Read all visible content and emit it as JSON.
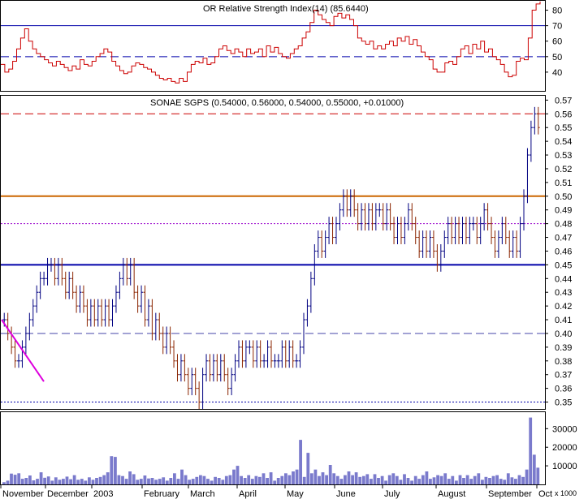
{
  "chart_data": [
    {
      "type": "line",
      "title": "OR Relative Strength Index(14) (85.6440)",
      "ylim": [
        30,
        85
      ],
      "yticks": [
        40,
        50,
        60,
        70,
        80
      ],
      "reference_lines": [
        {
          "value": 70,
          "style": "solid",
          "color": "#0000aa"
        },
        {
          "value": 50,
          "style": "dashed",
          "color": "#0000aa"
        }
      ],
      "series": [
        {
          "color": "#cc0000",
          "values": [
            45,
            40,
            42,
            47,
            55,
            62,
            68,
            60,
            55,
            52,
            50,
            48,
            46,
            44,
            47,
            45,
            43,
            41,
            44,
            42,
            48,
            45,
            44,
            47,
            50,
            52,
            55,
            53,
            47,
            44,
            41,
            39,
            40,
            44,
            46,
            45,
            43,
            42,
            40,
            38,
            36,
            35,
            36,
            34,
            33,
            36,
            34,
            40,
            45,
            47,
            46,
            49,
            45,
            46,
            50,
            55,
            57,
            54,
            52,
            55,
            53,
            50,
            55,
            52,
            53,
            55,
            50,
            57,
            53,
            56,
            52,
            50,
            49,
            52,
            55,
            57,
            62,
            66,
            72,
            80,
            77,
            74,
            72,
            70,
            76,
            78,
            75,
            77,
            74,
            70,
            62,
            60,
            58,
            60,
            55,
            57,
            55,
            58,
            60,
            57,
            62,
            60,
            63,
            58,
            61,
            57,
            53,
            50,
            48,
            42,
            40,
            40,
            46,
            47,
            45,
            50,
            55,
            57,
            52,
            58,
            55,
            60,
            53,
            55,
            50,
            48,
            45,
            40,
            37,
            38,
            47,
            49,
            48,
            62,
            80,
            84,
            85.6
          ]
        }
      ]
    },
    {
      "type": "candlestick",
      "title": "SONAE SGPS (0.54000, 0.56000, 0.54000, 0.55000, +0.01000)",
      "ylim": [
        0.345,
        0.572
      ],
      "yticks": [
        0.35,
        0.36,
        0.37,
        0.38,
        0.39,
        0.4,
        0.41,
        0.42,
        0.43,
        0.44,
        0.45,
        0.46,
        0.47,
        0.48,
        0.49,
        0.5,
        0.51,
        0.52,
        0.53,
        0.54,
        0.55,
        0.56,
        0.57
      ],
      "reference_lines": [
        {
          "value": 0.56,
          "style": "dashed",
          "color": "#cc0000"
        },
        {
          "value": 0.5,
          "style": "solid",
          "color": "#cc6600"
        },
        {
          "value": 0.48,
          "style": "dotted",
          "color": "#9900cc"
        },
        {
          "value": 0.45,
          "style": "solid",
          "color": "#0000aa"
        },
        {
          "value": 0.4,
          "style": "dashed",
          "color": "#4444aa"
        },
        {
          "value": 0.35,
          "style": "dotted",
          "color": "#0000aa"
        }
      ],
      "closes": [
        0.41,
        0.4,
        0.39,
        0.38,
        0.38,
        0.39,
        0.4,
        0.41,
        0.42,
        0.43,
        0.44,
        0.44,
        0.45,
        0.45,
        0.44,
        0.45,
        0.44,
        0.43,
        0.44,
        0.43,
        0.42,
        0.43,
        0.42,
        0.41,
        0.42,
        0.41,
        0.42,
        0.41,
        0.42,
        0.41,
        0.42,
        0.43,
        0.44,
        0.45,
        0.44,
        0.45,
        0.43,
        0.42,
        0.43,
        0.41,
        0.42,
        0.4,
        0.41,
        0.4,
        0.39,
        0.4,
        0.39,
        0.38,
        0.37,
        0.38,
        0.37,
        0.36,
        0.37,
        0.36,
        0.35,
        0.37,
        0.38,
        0.37,
        0.38,
        0.37,
        0.38,
        0.37,
        0.36,
        0.37,
        0.38,
        0.39,
        0.38,
        0.39,
        0.39,
        0.38,
        0.39,
        0.38,
        0.38,
        0.39,
        0.38,
        0.38,
        0.38,
        0.39,
        0.38,
        0.39,
        0.38,
        0.38,
        0.39,
        0.41,
        0.42,
        0.44,
        0.46,
        0.47,
        0.46,
        0.47,
        0.48,
        0.47,
        0.48,
        0.49,
        0.5,
        0.49,
        0.5,
        0.49,
        0.48,
        0.49,
        0.48,
        0.49,
        0.48,
        0.49,
        0.49,
        0.48,
        0.49,
        0.48,
        0.47,
        0.48,
        0.47,
        0.48,
        0.49,
        0.48,
        0.47,
        0.46,
        0.47,
        0.46,
        0.47,
        0.46,
        0.45,
        0.46,
        0.47,
        0.48,
        0.47,
        0.48,
        0.47,
        0.48,
        0.47,
        0.48,
        0.48,
        0.47,
        0.48,
        0.49,
        0.48,
        0.47,
        0.46,
        0.47,
        0.48,
        0.47,
        0.46,
        0.47,
        0.46,
        0.48,
        0.5,
        0.53,
        0.55,
        0.56,
        0.55
      ]
    },
    {
      "type": "bar",
      "ylim": [
        0,
        38000
      ],
      "yticks": [
        10000,
        20000,
        30000
      ],
      "unit_label": "x 1000",
      "values": [
        1200,
        2000,
        5800,
        5200,
        6000,
        3000,
        3500,
        4800,
        2200,
        3000,
        6500,
        3600,
        4300,
        2000,
        3800,
        2500,
        3000,
        4200,
        2800,
        5000,
        2500,
        3000,
        2000,
        3800,
        2500,
        3500,
        4000,
        5000,
        6500,
        15200,
        14800,
        5000,
        4500,
        3000,
        7000,
        5500,
        2500,
        3000,
        4800,
        3200,
        3500,
        2500,
        3000,
        3800,
        2000,
        3500,
        6000,
        3000,
        8000,
        5000,
        2500,
        3000,
        4000,
        5000,
        4500,
        3000,
        2000,
        4000,
        3500,
        2500,
        4500,
        5000,
        8000,
        10000,
        4500,
        3500,
        5000,
        3000,
        4500,
        4000,
        6000,
        3500,
        6500,
        2000,
        3500,
        4500,
        6000,
        5000,
        7000,
        8000,
        24000,
        4000,
        17000,
        6000,
        8000,
        4500,
        6500,
        5000,
        10500,
        6000,
        4500,
        3000,
        5000,
        7000,
        5000,
        6500,
        4000,
        4500,
        5500,
        3000,
        5500,
        3500,
        4500,
        2000,
        5000,
        6000,
        4500,
        2500,
        5500,
        3500,
        2000,
        4500,
        3000,
        5000,
        7000,
        3000,
        3800,
        5000,
        4500,
        6000,
        3000,
        4500,
        2000,
        5000,
        3500,
        5000,
        3000,
        4500,
        6000,
        2500,
        4000,
        3500,
        4500,
        5000,
        3000,
        2500,
        6000,
        3800,
        3000,
        5000,
        4000,
        8000,
        36000,
        16000,
        9000
      ]
    }
  ],
  "x_axis": {
    "labels": [
      "November",
      "December",
      "2003",
      "February",
      "March",
      "April",
      "May",
      "June",
      "July",
      "August",
      "September",
      "Oct"
    ]
  }
}
